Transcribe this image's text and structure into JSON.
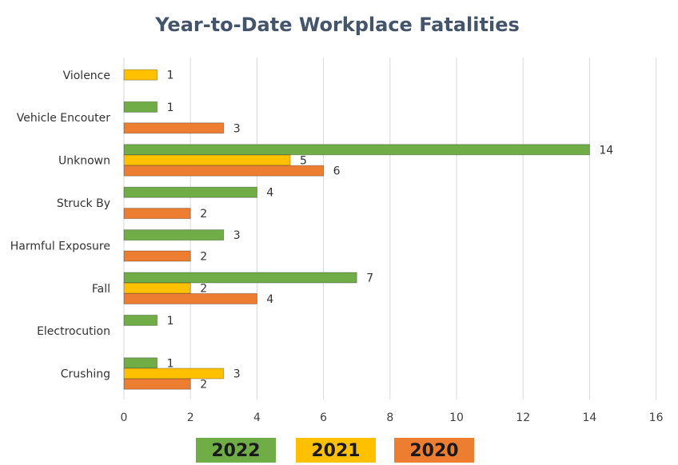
{
  "chart_data": {
    "type": "bar",
    "orientation": "horizontal",
    "title": "Year-to-Date Workplace Fatalities",
    "xlabel": "",
    "ylabel": "",
    "xlim": [
      0,
      16
    ],
    "x_ticks": [
      0,
      2,
      4,
      6,
      8,
      10,
      12,
      14,
      16
    ],
    "grid": true,
    "legend_position": "bottom",
    "categories": [
      "Violence",
      "Vehicle Encouter",
      "Unknown",
      "Struck By",
      "Harmful Exposure",
      "Fall",
      "Electrocution",
      "Crushing"
    ],
    "series": [
      {
        "name": "2022",
        "color": "#70ad47",
        "values": [
          null,
          1,
          14,
          4,
          3,
          7,
          1,
          1
        ]
      },
      {
        "name": "2021",
        "color": "#ffc000",
        "values": [
          1,
          null,
          5,
          null,
          null,
          2,
          null,
          3
        ]
      },
      {
        "name": "2020",
        "color": "#ed7d31",
        "values": [
          null,
          3,
          6,
          2,
          2,
          4,
          null,
          2
        ]
      }
    ]
  }
}
